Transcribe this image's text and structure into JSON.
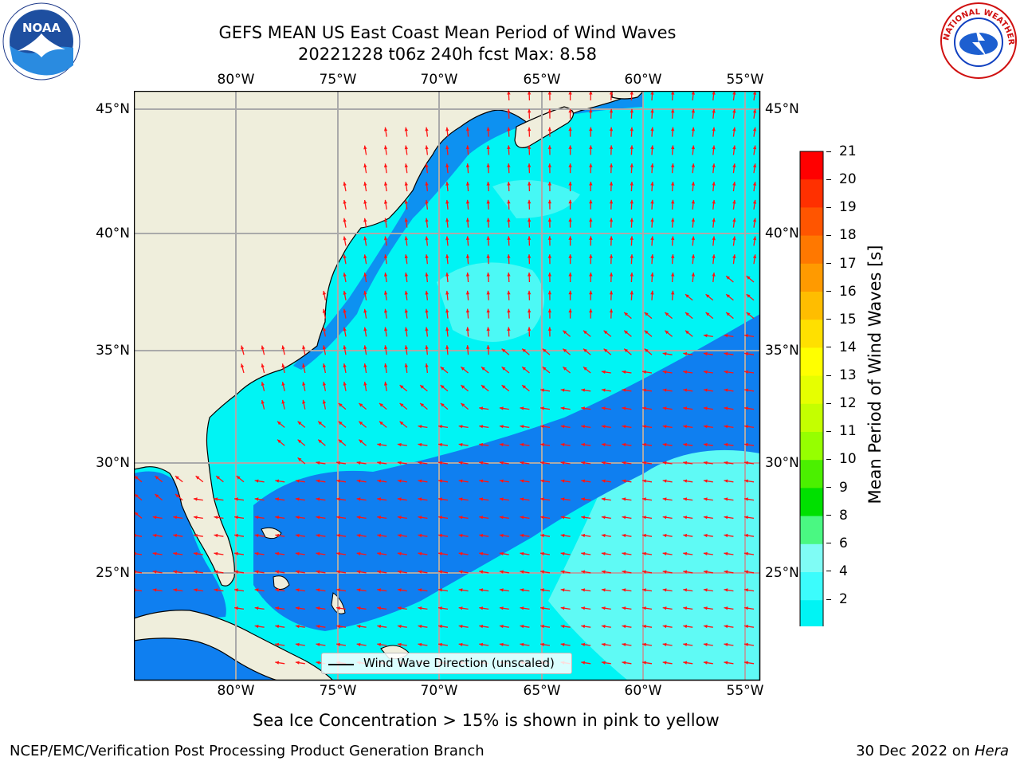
{
  "title": {
    "line1": "GEFS MEAN US East Coast Mean Period of Wind Waves",
    "line2": "20221228 t06z 240h fcst   Max: 8.58"
  },
  "map": {
    "lon_labels": [
      "80°W",
      "75°W",
      "70°W",
      "65°W",
      "60°W",
      "55°W"
    ],
    "lat_labels": [
      "45°N",
      "40°N",
      "35°N",
      "30°N",
      "25°N"
    ],
    "lon_range": [
      -85,
      -54.3
    ],
    "lat_range": [
      20.3,
      45.8
    ],
    "gridlines": true,
    "colors": {
      "land": "#efeedc",
      "very_light_cyan": "#7ffcf5",
      "cyan": "#00f4f4",
      "blue": "#0f7ff0",
      "arrow": "#ff1414",
      "gridline": "#aaaaaa"
    },
    "legend": "Wind Wave Direction (unscaled)",
    "legend_placement": "bottom-center"
  },
  "colorbar": {
    "label": "Mean Period of Wind Waves [s]",
    "labels": [
      "21",
      "20",
      "19",
      "18",
      "17",
      "16",
      "15",
      "14",
      "13",
      "12",
      "11",
      "10",
      "9",
      "8",
      "6",
      "4",
      "2"
    ],
    "colors_top_to_bottom": [
      "#ff0000",
      "#ff3000",
      "#ff5500",
      "#ff7800",
      "#ff9a00",
      "#ffbd00",
      "#ffe000",
      "#ffff00",
      "#e6ff00",
      "#c4ff00",
      "#96ff00",
      "#4bf000",
      "#00e000",
      "#4af882",
      "#7ffcf5",
      "#3cfcfc",
      "#00f4f4",
      "#0f7ff0"
    ],
    "extend_color": "#1010ff",
    "extend": "min"
  },
  "chart_data": {
    "type": "heatmap",
    "variable": "Mean Period of Wind Waves [s]",
    "max": 8.58,
    "contour_levels": [
      2,
      4,
      6,
      8,
      9,
      10,
      11,
      12,
      13,
      14,
      15,
      16,
      17,
      18,
      19,
      20,
      21
    ],
    "xlabel": "",
    "ylabel": "",
    "xlim": [
      -85,
      -54.3
    ],
    "ylim": [
      20.3,
      45.8
    ],
    "grid": true
  },
  "notes": {
    "sea_ice": "Sea Ice Concentration > 15% is shown in pink to yellow"
  },
  "footer": {
    "left": "NCEP/EMC/Verification Post Processing Product Generation Branch",
    "right_date": "30 Dec 2022 on ",
    "right_host": "Hera"
  },
  "logos": {
    "left": "NOAA",
    "right": "NATIONAL WEATHER SERVICE"
  }
}
